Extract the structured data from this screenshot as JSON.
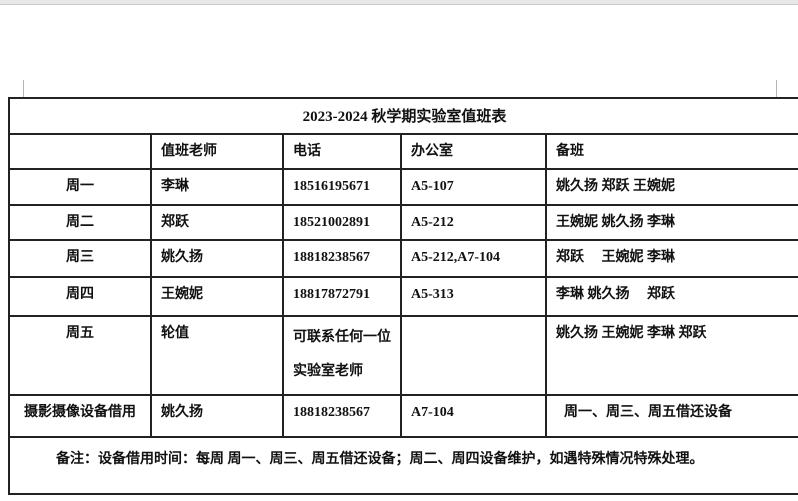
{
  "document": {
    "title": "2023-2024 秋学期实验室值班表",
    "table": {
      "headers": {
        "day": "",
        "teacher": "值班老师",
        "phone": "电话",
        "office": "办公室",
        "backup": "备班"
      },
      "rows": [
        {
          "day": "周一",
          "teacher": "李琳",
          "phone": "18516195671",
          "office": "A5-107",
          "backup": "姚久扬  郑跃  王婉妮"
        },
        {
          "day": "周二",
          "teacher": "郑跃",
          "phone": "18521002891",
          "office": "A5-212",
          "backup": "王婉妮  姚久扬  李琳"
        },
        {
          "day": "周三",
          "teacher": "姚久扬",
          "phone": "18818238567",
          "office": "A5-212,A7-104",
          "backup": "郑跃　 王婉妮  李琳"
        },
        {
          "day": "周四",
          "teacher": "王婉妮",
          "phone": "18817872791",
          "office": "A5-313",
          "backup": "李琳  姚久扬　  郑跃"
        },
        {
          "day": "周五",
          "teacher": "轮值",
          "phone": "可联系任何一位\n实验室老师",
          "office": "",
          "backup": "姚久扬  王婉妮  李琳  郑跃"
        },
        {
          "day": "摄影摄像设备借用",
          "teacher": "姚久扬",
          "phone": "18818238567",
          "office": "A7-104",
          "backup": "周一、周三、周五借还设备"
        }
      ],
      "note": "备注：设备借用时间：每周  周一、周三、周五借还设备；周二、周四设备维护，如遇特殊情况特殊处理。"
    }
  }
}
